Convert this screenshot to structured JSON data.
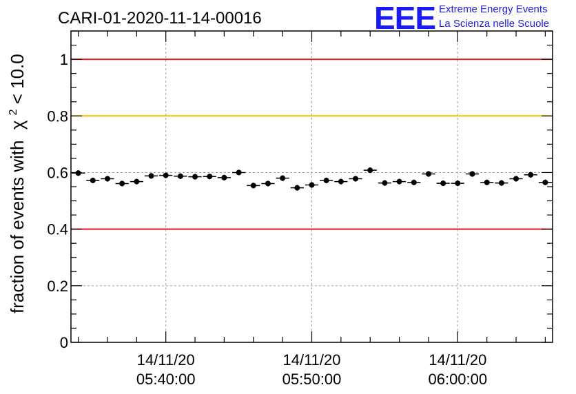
{
  "chart_data": {
    "type": "scatter",
    "title": "CARI-01-2020-11-14-00016",
    "ylabel_prefix": "fraction of events with",
    "ylabel_chi": "χ",
    "ylabel_sup": "2",
    "ylabel_suffix": " < 10.0",
    "xlabel": "",
    "ylim": [
      0,
      1.1
    ],
    "y_ticks": [
      0,
      0.2,
      0.4,
      0.6,
      0.8,
      1
    ],
    "y_tick_labels": [
      "0",
      "0.2",
      "0.4",
      "0.6",
      "0.8",
      "1"
    ],
    "x_tick_labels": [
      {
        "date": "14/11/20",
        "time": "05:40:00"
      },
      {
        "date": "14/11/20",
        "time": "05:50:00"
      },
      {
        "date": "14/11/20",
        "time": "06:00:00"
      }
    ],
    "x_range_minutes": [
      0,
      33
    ],
    "x_major_ticks_minutes": [
      6.5,
      16.5,
      26.5
    ],
    "reference_lines": [
      {
        "y": 1.0,
        "color": "#e8141c"
      },
      {
        "y": 0.8,
        "color": "#f5c200"
      },
      {
        "y": 0.4,
        "color": "#e8141c"
      }
    ],
    "grid": true,
    "bin_width_minutes": 1,
    "bin_centers_minutes": [
      0.5,
      1.5,
      2.5,
      3.5,
      4.5,
      5.5,
      6.5,
      7.5,
      8.5,
      9.5,
      10.5,
      11.5,
      12.5,
      13.5,
      14.5,
      15.5,
      16.5,
      17.5,
      18.5,
      19.5,
      20.5,
      21.5,
      22.5,
      23.5,
      24.5,
      25.5,
      26.5,
      27.5,
      28.5,
      29.5,
      30.5,
      31.5,
      32.5
    ],
    "values": [
      0.598,
      0.572,
      0.578,
      0.561,
      0.568,
      0.588,
      0.59,
      0.587,
      0.585,
      0.586,
      0.582,
      0.6,
      0.554,
      0.561,
      0.58,
      0.546,
      0.556,
      0.572,
      0.568,
      0.578,
      0.608,
      0.563,
      0.568,
      0.565,
      0.595,
      0.562,
      0.562,
      0.595,
      0.565,
      0.563,
      0.578,
      0.592,
      0.565
    ],
    "error": 0.01,
    "marker_color": "#000000"
  },
  "logo": {
    "mark": "EEE",
    "line1": "Extreme Energy Events",
    "line2": "La Scienza nelle Scuole",
    "color": "#1a1aff"
  }
}
